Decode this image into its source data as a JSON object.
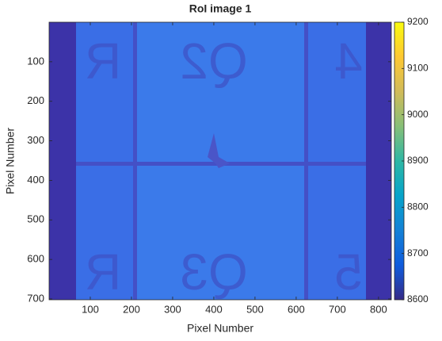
{
  "chart_data": {
    "type": "image",
    "title": "RoI image 1",
    "xlabel": "Pixel Number",
    "ylabel": "Pixel Number",
    "xlim": [
      0,
      831
    ],
    "xticks": [
      100,
      200,
      300,
      400,
      500,
      600,
      700,
      800
    ],
    "ylim": [
      0,
      702
    ],
    "yticks": [
      100,
      200,
      300,
      400,
      500,
      600,
      700
    ],
    "y_reversed": true,
    "clim": [
      8600,
      9200
    ],
    "cticks": [
      8600,
      8700,
      8800,
      8900,
      9000,
      9100,
      9200
    ],
    "colormap": [
      "#352a87",
      "#0f5cdd",
      "#1481d6",
      "#06a4ca",
      "#2eb7a4",
      "#87bf77",
      "#d1bb59",
      "#fec832",
      "#f9fb0e"
    ],
    "image_labels": [
      "R",
      "Q2",
      "4",
      "R",
      "Q3",
      "5"
    ]
  }
}
